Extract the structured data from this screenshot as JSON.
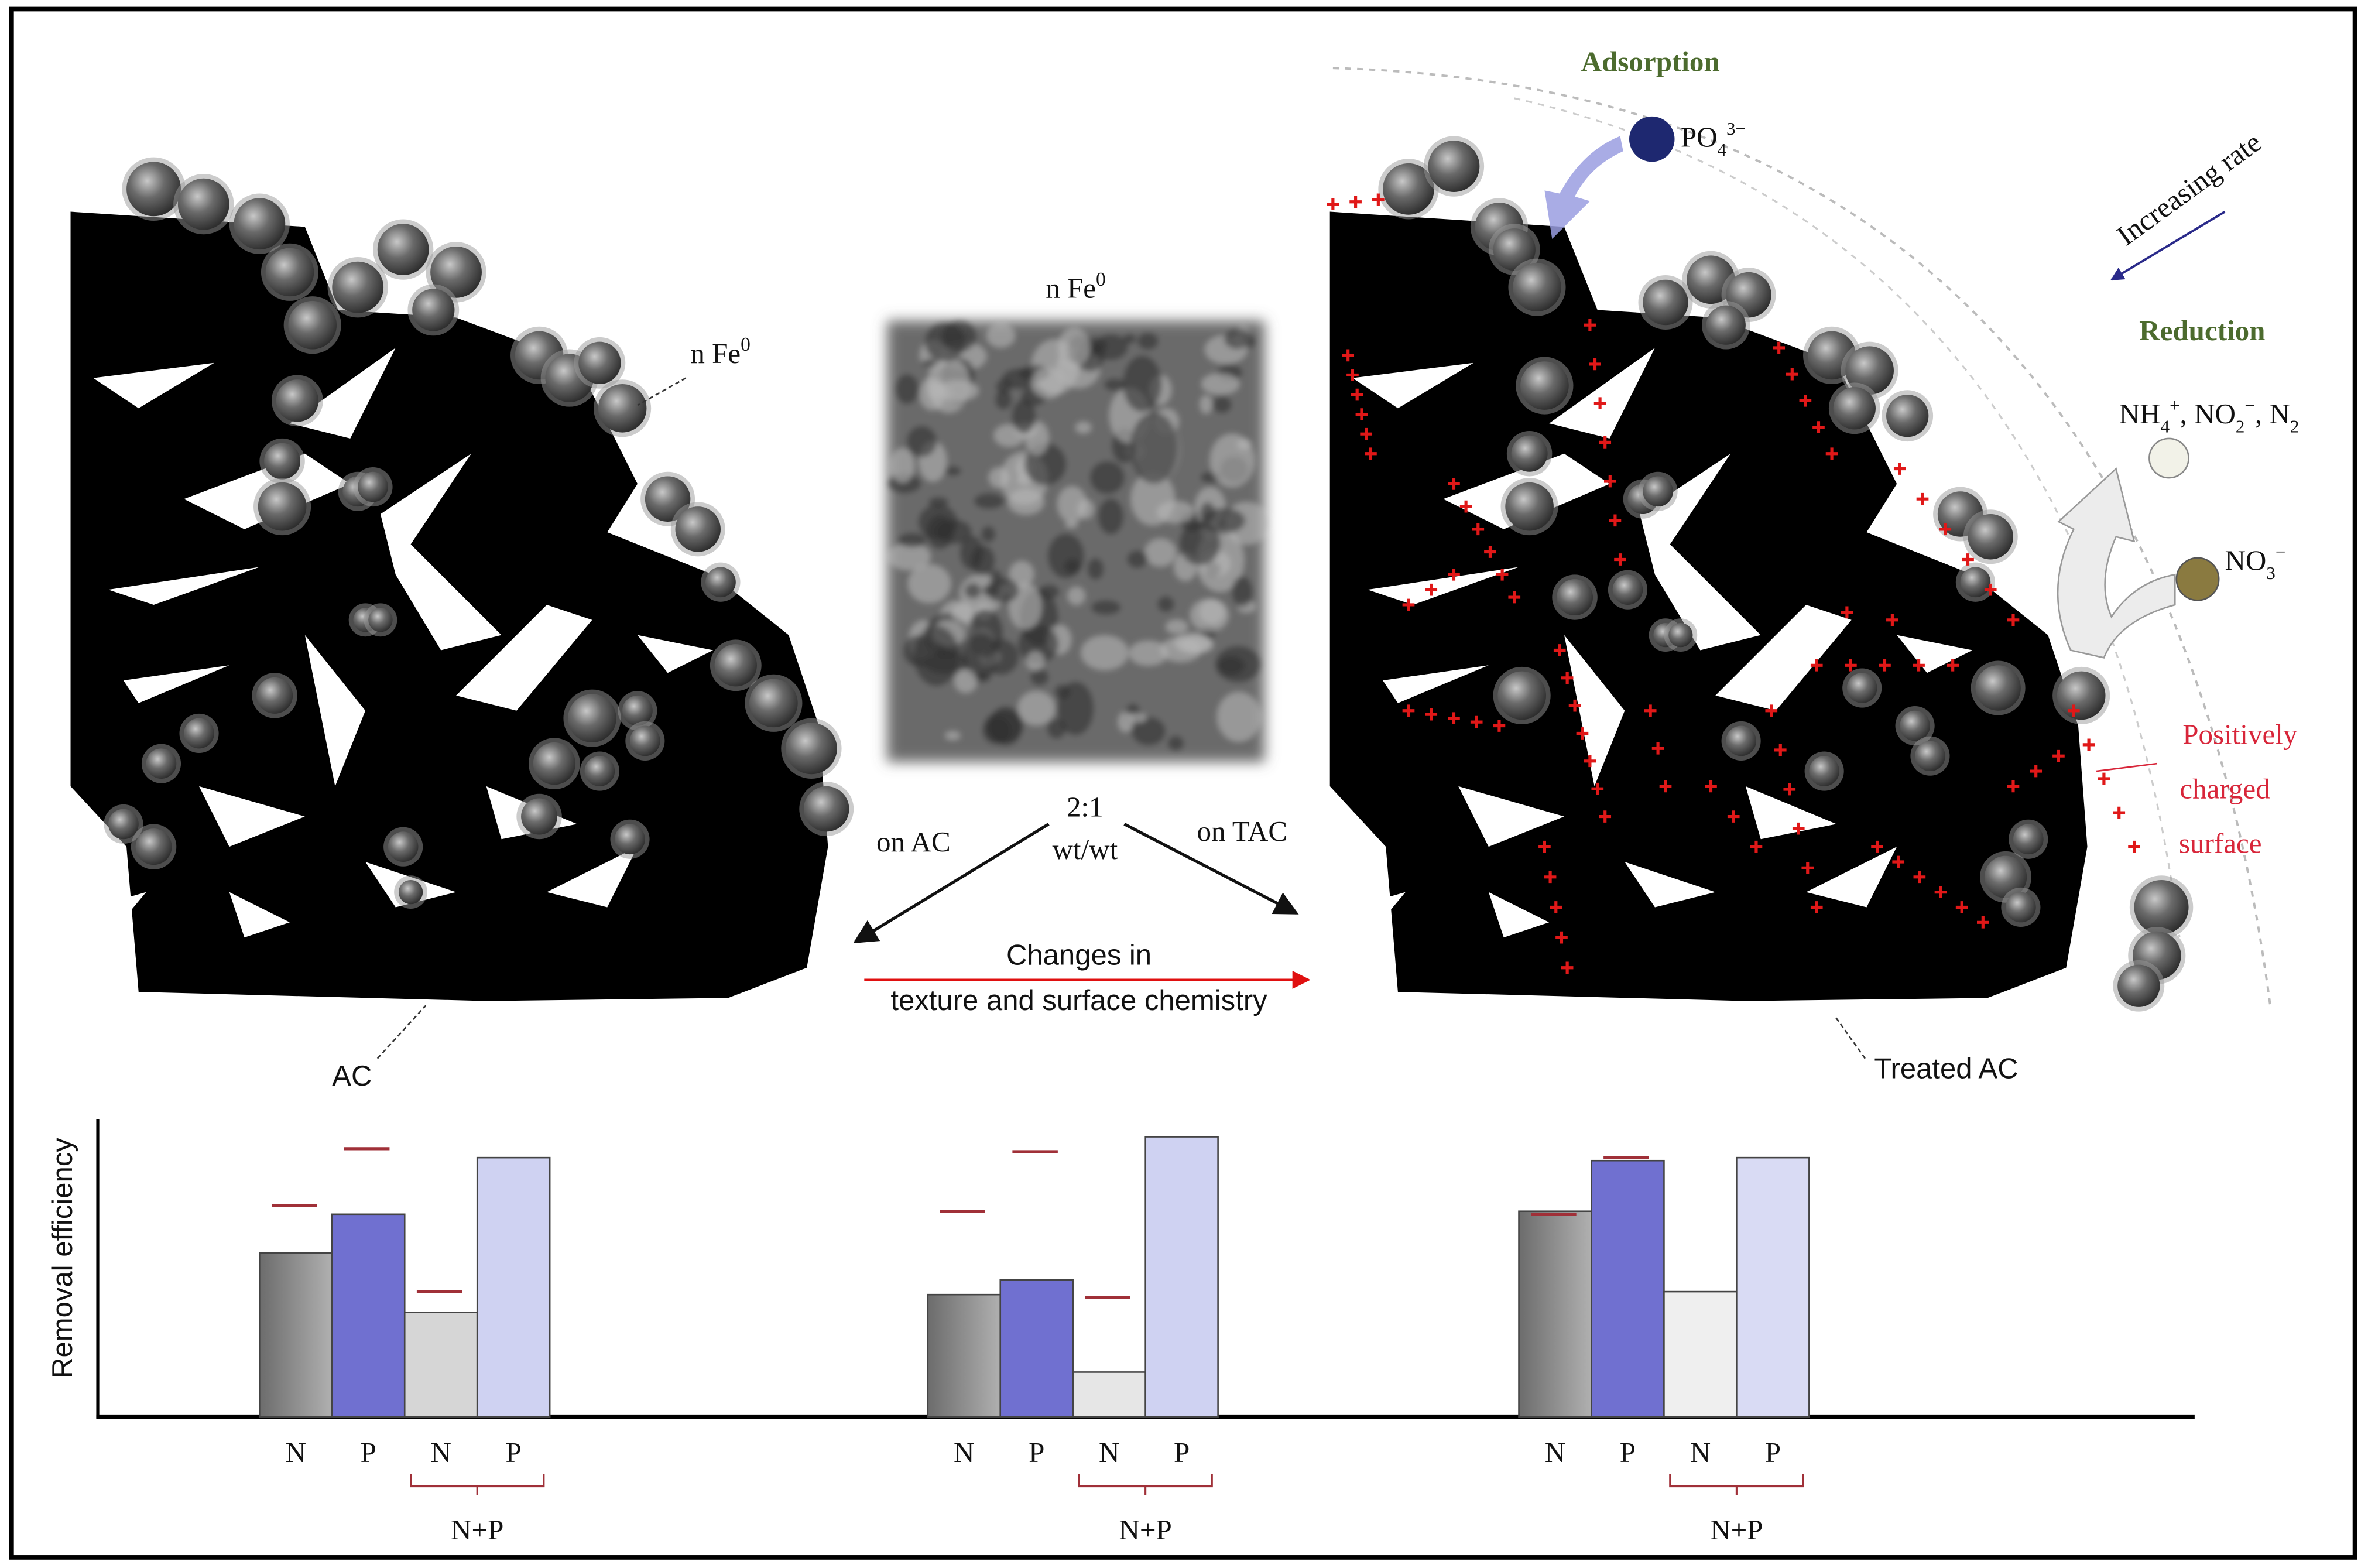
{
  "left_panel": {
    "nfe": "n Fe",
    "nfe_sup": "0",
    "ac": "AC"
  },
  "center": {
    "nfe": "n Fe",
    "nfe_sup": "0",
    "ratio": "2:1",
    "ratio_unit": "wt/wt",
    "on_ac": "on AC",
    "on_tac": "on TAC",
    "changes_line1": "Changes in",
    "changes_line2": "texture and surface chemistry"
  },
  "right_panel": {
    "adsorption": "Adsorption",
    "po4": "PO",
    "po4_sub": "4",
    "po4_sup": "3−",
    "increasing_rate": "Increasing rate",
    "reduction": "Reduction",
    "products": [
      {
        "text": "NH"
      },
      {
        "sub": "4"
      },
      {
        "sup": "+"
      },
      {
        "text": ", NO"
      },
      {
        "sub": "2"
      },
      {
        "sup": "−"
      },
      {
        "text": ", N"
      },
      {
        "sub": "2"
      }
    ],
    "no3": "NO",
    "no3_sub": "3",
    "no3_sup": "−",
    "positively_charged": [
      "Positively",
      "charged",
      "surface"
    ],
    "treated_ac": "Treated AC"
  },
  "chart_data": {
    "type": "bar",
    "y_label": "Removal efficiency",
    "ylim": [
      0,
      100
    ],
    "groups": [
      {
        "categories": [
          "N",
          "P",
          "N",
          "P"
        ],
        "pair_label": "N+P",
        "values": [
          55,
          68,
          35,
          87
        ],
        "markers": [
          71,
          90,
          42,
          null
        ],
        "colors": [
          "#8a8a8a",
          "#7070d0",
          "#d6d6d6",
          "#cfd2f2"
        ]
      },
      {
        "categories": [
          "N",
          "P",
          "N",
          "P"
        ],
        "pair_label": "N+P",
        "values": [
          41,
          46,
          15,
          94
        ],
        "markers": [
          69,
          89,
          40,
          null
        ],
        "colors": [
          "#8a8a8a",
          "#7070d0",
          "#e6e6e6",
          "#cfd2f2"
        ]
      },
      {
        "categories": [
          "N",
          "P",
          "N",
          "P"
        ],
        "pair_label": "N+P",
        "values": [
          69,
          86,
          42,
          87
        ],
        "markers": [
          68,
          87,
          null,
          null
        ],
        "colors": [
          "#8a8a8a",
          "#7070d0",
          "#efefef",
          "#d9dbf4"
        ]
      }
    ]
  }
}
